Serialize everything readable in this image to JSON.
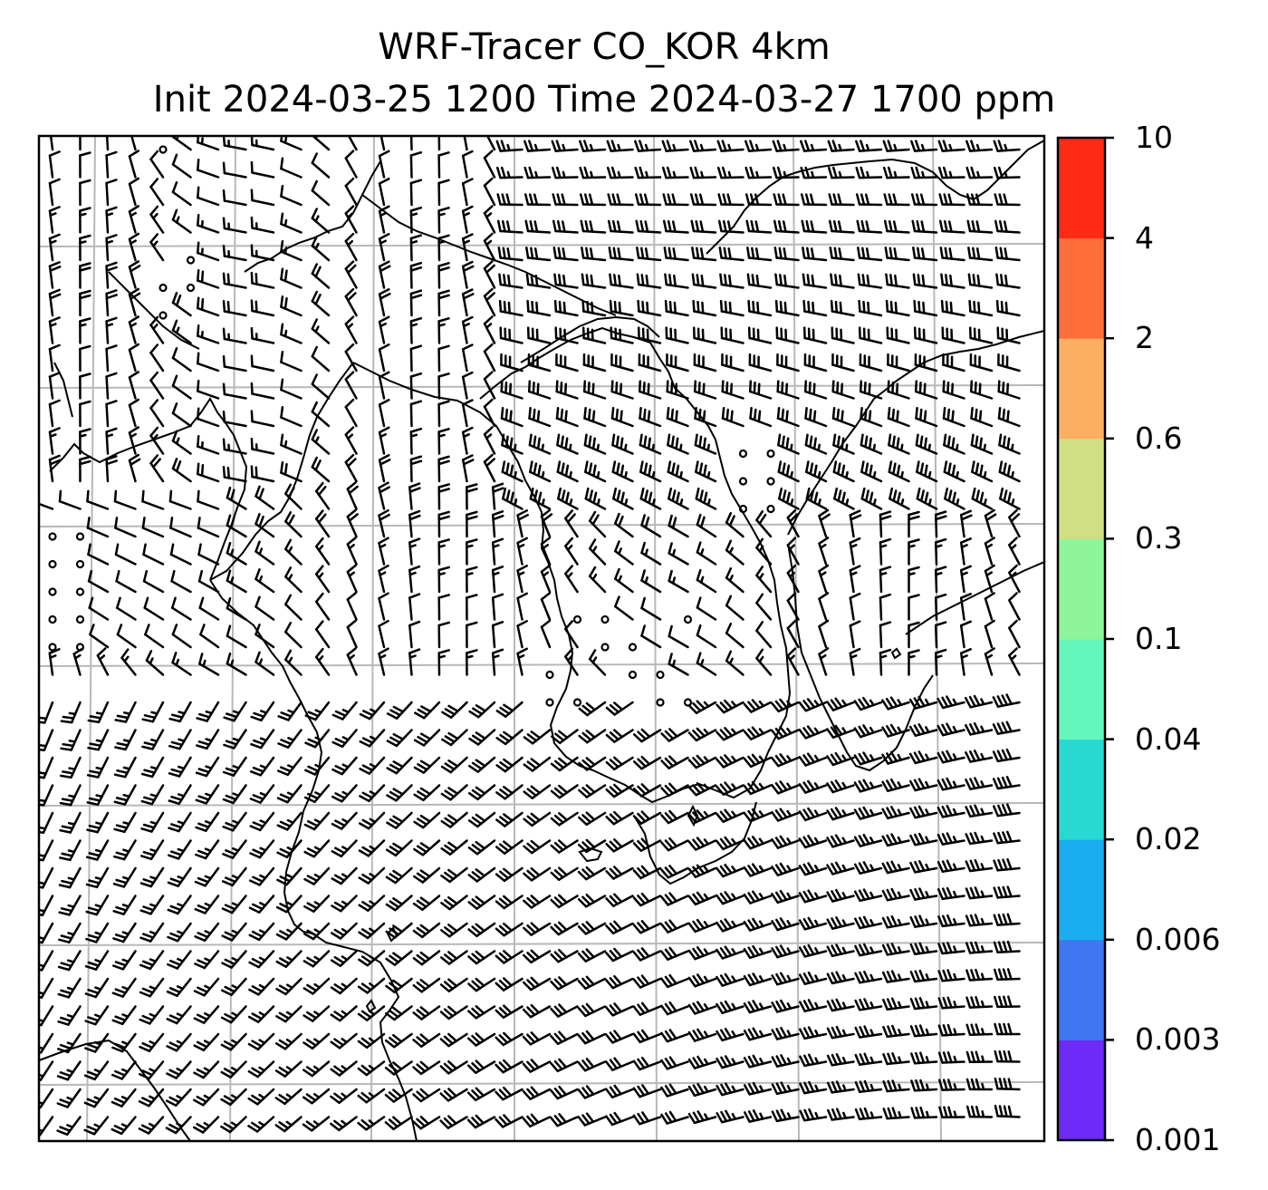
{
  "title": {
    "line1": "WRF-Tracer CO_KOR 4km",
    "line2": "Init 2024-03-25 1200 Time 2024-03-27 1700 ppm"
  },
  "colorbar": {
    "levels": [
      {
        "label": "0.001",
        "color": "#6e2af7"
      },
      {
        "label": "0.003",
        "color": "#3f76f1"
      },
      {
        "label": "0.006",
        "color": "#1aaef0"
      },
      {
        "label": "0.02",
        "color": "#27d9d2"
      },
      {
        "label": "0.04",
        "color": "#63f7bd"
      },
      {
        "label": "0.1",
        "color": "#8ef59a"
      },
      {
        "label": "0.3",
        "color": "#d0df84"
      },
      {
        "label": "0.6",
        "color": "#fdaf61"
      },
      {
        "label": "2",
        "color": "#fe6e3b"
      },
      {
        "label": "4",
        "color": "#ff2b14"
      },
      {
        "label": "10",
        "color": ""
      }
    ]
  },
  "map": {
    "field": "wind barbs over Korean peninsula region",
    "gridlines": true,
    "calm_marker": "open circle"
  }
}
